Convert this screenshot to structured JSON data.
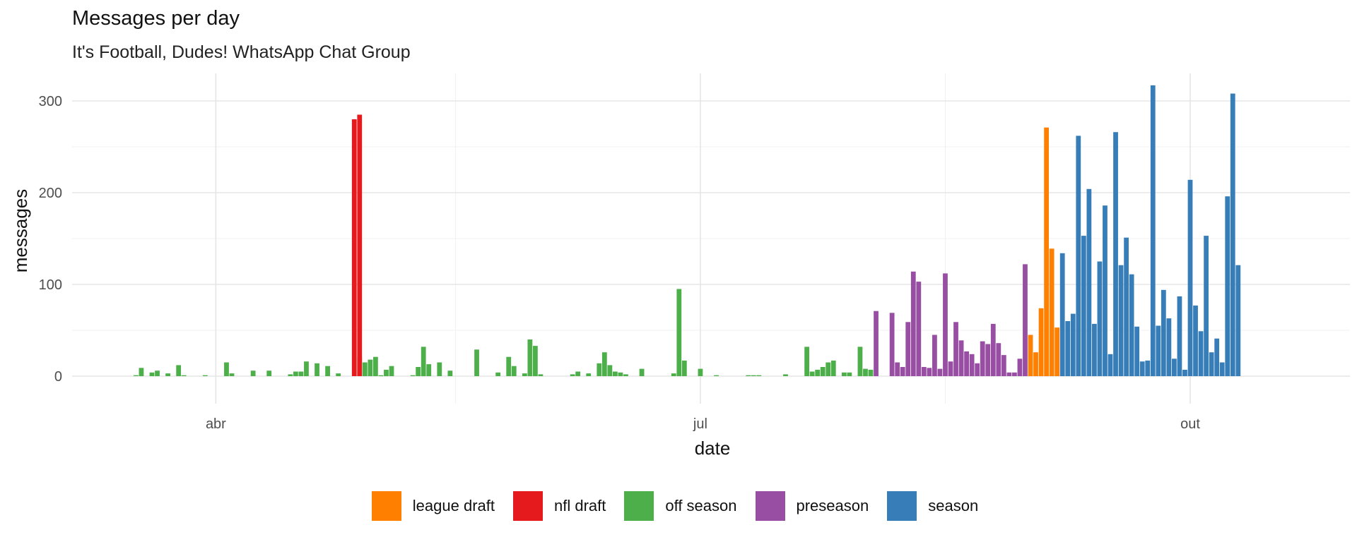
{
  "chart_data": {
    "type": "bar",
    "title": "Messages per day",
    "subtitle": "It's Football, Dudes! WhatsApp Chat Group",
    "xlabel": "date",
    "ylabel": "messages",
    "x_ticks": [
      {
        "date": "2023-04-01",
        "label": "abr"
      },
      {
        "date": "2023-07-01",
        "label": "jul"
      },
      {
        "date": "2023-10-01",
        "label": "out"
      }
    ],
    "x_minor_dates": [
      "2023-05-16",
      "2023-08-16"
    ],
    "xlim": [
      "2023-03-05",
      "2023-10-31"
    ],
    "ylim": [
      -30,
      330
    ],
    "y_ticks": [
      0,
      100,
      200,
      300
    ],
    "y_minor": [
      50,
      150,
      250
    ],
    "grid": true,
    "legend_position": "bottom",
    "legend": [
      {
        "category": "league draft",
        "color": "#FF7F00"
      },
      {
        "category": "nfl draft",
        "color": "#E41A1C"
      },
      {
        "category": "off season",
        "color": "#4DAF4A"
      },
      {
        "category": "preseason",
        "color": "#984EA3"
      },
      {
        "category": "season",
        "color": "#377EB8"
      }
    ],
    "series": [
      {
        "category": "off season",
        "points": [
          [
            "2023-03-17",
            1
          ],
          [
            "2023-03-18",
            9
          ],
          [
            "2023-03-20",
            4
          ],
          [
            "2023-03-21",
            6
          ],
          [
            "2023-03-23",
            3
          ],
          [
            "2023-03-25",
            12
          ],
          [
            "2023-03-26",
            1
          ],
          [
            "2023-03-30",
            1
          ],
          [
            "2023-04-03",
            15
          ],
          [
            "2023-04-04",
            3
          ],
          [
            "2023-04-08",
            6
          ],
          [
            "2023-04-11",
            6
          ],
          [
            "2023-04-15",
            2
          ],
          [
            "2023-04-16",
            5
          ],
          [
            "2023-04-17",
            5
          ],
          [
            "2023-04-18",
            16
          ],
          [
            "2023-04-20",
            14
          ],
          [
            "2023-04-22",
            11
          ],
          [
            "2023-04-24",
            3
          ],
          [
            "2023-04-28",
            21
          ],
          [
            "2023-04-29",
            15
          ],
          [
            "2023-04-30",
            18
          ],
          [
            "2023-05-01",
            21
          ],
          [
            "2023-05-02",
            1
          ],
          [
            "2023-05-03",
            7
          ],
          [
            "2023-05-04",
            11
          ],
          [
            "2023-05-08",
            1
          ],
          [
            "2023-05-09",
            10
          ],
          [
            "2023-05-10",
            32
          ],
          [
            "2023-05-11",
            13
          ],
          [
            "2023-05-13",
            15
          ],
          [
            "2023-05-15",
            6
          ],
          [
            "2023-05-20",
            29
          ],
          [
            "2023-05-24",
            4
          ],
          [
            "2023-05-26",
            21
          ],
          [
            "2023-05-27",
            11
          ],
          [
            "2023-05-29",
            3
          ],
          [
            "2023-05-30",
            40
          ],
          [
            "2023-05-31",
            33
          ],
          [
            "2023-06-01",
            2
          ],
          [
            "2023-06-07",
            2
          ],
          [
            "2023-06-08",
            5
          ],
          [
            "2023-06-10",
            3
          ],
          [
            "2023-06-12",
            14
          ],
          [
            "2023-06-13",
            26
          ],
          [
            "2023-06-14",
            12
          ],
          [
            "2023-06-15",
            5
          ],
          [
            "2023-06-16",
            4
          ],
          [
            "2023-06-17",
            2
          ],
          [
            "2023-06-20",
            8
          ],
          [
            "2023-06-26",
            3
          ],
          [
            "2023-06-27",
            95
          ],
          [
            "2023-06-28",
            17
          ],
          [
            "2023-07-01",
            8
          ],
          [
            "2023-07-04",
            1
          ],
          [
            "2023-07-10",
            1
          ],
          [
            "2023-07-11",
            1
          ],
          [
            "2023-07-12",
            1
          ],
          [
            "2023-07-17",
            2
          ],
          [
            "2023-07-21",
            32
          ],
          [
            "2023-07-22",
            5
          ],
          [
            "2023-07-23",
            7
          ],
          [
            "2023-07-24",
            10
          ],
          [
            "2023-07-25",
            15
          ],
          [
            "2023-07-26",
            17
          ],
          [
            "2023-07-28",
            4
          ],
          [
            "2023-07-29",
            4
          ],
          [
            "2023-07-31",
            32
          ],
          [
            "2023-08-01",
            8
          ],
          [
            "2023-08-02",
            7
          ]
        ]
      },
      {
        "category": "nfl draft",
        "points": [
          [
            "2023-04-27",
            280
          ],
          [
            "2023-04-28",
            285
          ]
        ]
      },
      {
        "category": "preseason",
        "points": [
          [
            "2023-08-03",
            71
          ],
          [
            "2023-08-06",
            69
          ],
          [
            "2023-08-07",
            15
          ],
          [
            "2023-08-08",
            10
          ],
          [
            "2023-08-09",
            59
          ],
          [
            "2023-08-10",
            114
          ],
          [
            "2023-08-11",
            103
          ],
          [
            "2023-08-12",
            10
          ],
          [
            "2023-08-13",
            9
          ],
          [
            "2023-08-14",
            45
          ],
          [
            "2023-08-15",
            8
          ],
          [
            "2023-08-16",
            112
          ],
          [
            "2023-08-17",
            16
          ],
          [
            "2023-08-18",
            59
          ],
          [
            "2023-08-19",
            39
          ],
          [
            "2023-08-20",
            27
          ],
          [
            "2023-08-21",
            24
          ],
          [
            "2023-08-22",
            14
          ],
          [
            "2023-08-23",
            38
          ],
          [
            "2023-08-24",
            35
          ],
          [
            "2023-08-25",
            57
          ],
          [
            "2023-08-26",
            36
          ],
          [
            "2023-08-27",
            23
          ],
          [
            "2023-08-28",
            4
          ],
          [
            "2023-08-29",
            4
          ],
          [
            "2023-08-30",
            19
          ],
          [
            "2023-08-31",
            122
          ]
        ]
      },
      {
        "category": "league draft",
        "points": [
          [
            "2023-09-01",
            45
          ],
          [
            "2023-09-02",
            26
          ],
          [
            "2023-09-03",
            74
          ],
          [
            "2023-09-04",
            271
          ],
          [
            "2023-09-05",
            139
          ],
          [
            "2023-09-06",
            53
          ]
        ]
      },
      {
        "category": "season",
        "points": [
          [
            "2023-09-07",
            134
          ],
          [
            "2023-09-08",
            60
          ],
          [
            "2023-09-09",
            68
          ],
          [
            "2023-09-10",
            262
          ],
          [
            "2023-09-11",
            153
          ],
          [
            "2023-09-12",
            204
          ],
          [
            "2023-09-13",
            57
          ],
          [
            "2023-09-14",
            125
          ],
          [
            "2023-09-15",
            186
          ],
          [
            "2023-09-16",
            24
          ],
          [
            "2023-09-17",
            266
          ],
          [
            "2023-09-18",
            121
          ],
          [
            "2023-09-19",
            151
          ],
          [
            "2023-09-20",
            111
          ],
          [
            "2023-09-21",
            54
          ],
          [
            "2023-09-22",
            16
          ],
          [
            "2023-09-23",
            17
          ],
          [
            "2023-09-24",
            317
          ],
          [
            "2023-09-25",
            55
          ],
          [
            "2023-09-26",
            94
          ],
          [
            "2023-09-27",
            63
          ],
          [
            "2023-09-28",
            19
          ],
          [
            "2023-09-29",
            87
          ],
          [
            "2023-09-30",
            7
          ],
          [
            "2023-10-01",
            214
          ],
          [
            "2023-10-02",
            77
          ],
          [
            "2023-10-03",
            49
          ],
          [
            "2023-10-04",
            153
          ],
          [
            "2023-10-05",
            26
          ],
          [
            "2023-10-06",
            41
          ],
          [
            "2023-10-07",
            15
          ],
          [
            "2023-10-08",
            196
          ],
          [
            "2023-10-09",
            308
          ],
          [
            "2023-10-10",
            121
          ]
        ]
      }
    ]
  }
}
